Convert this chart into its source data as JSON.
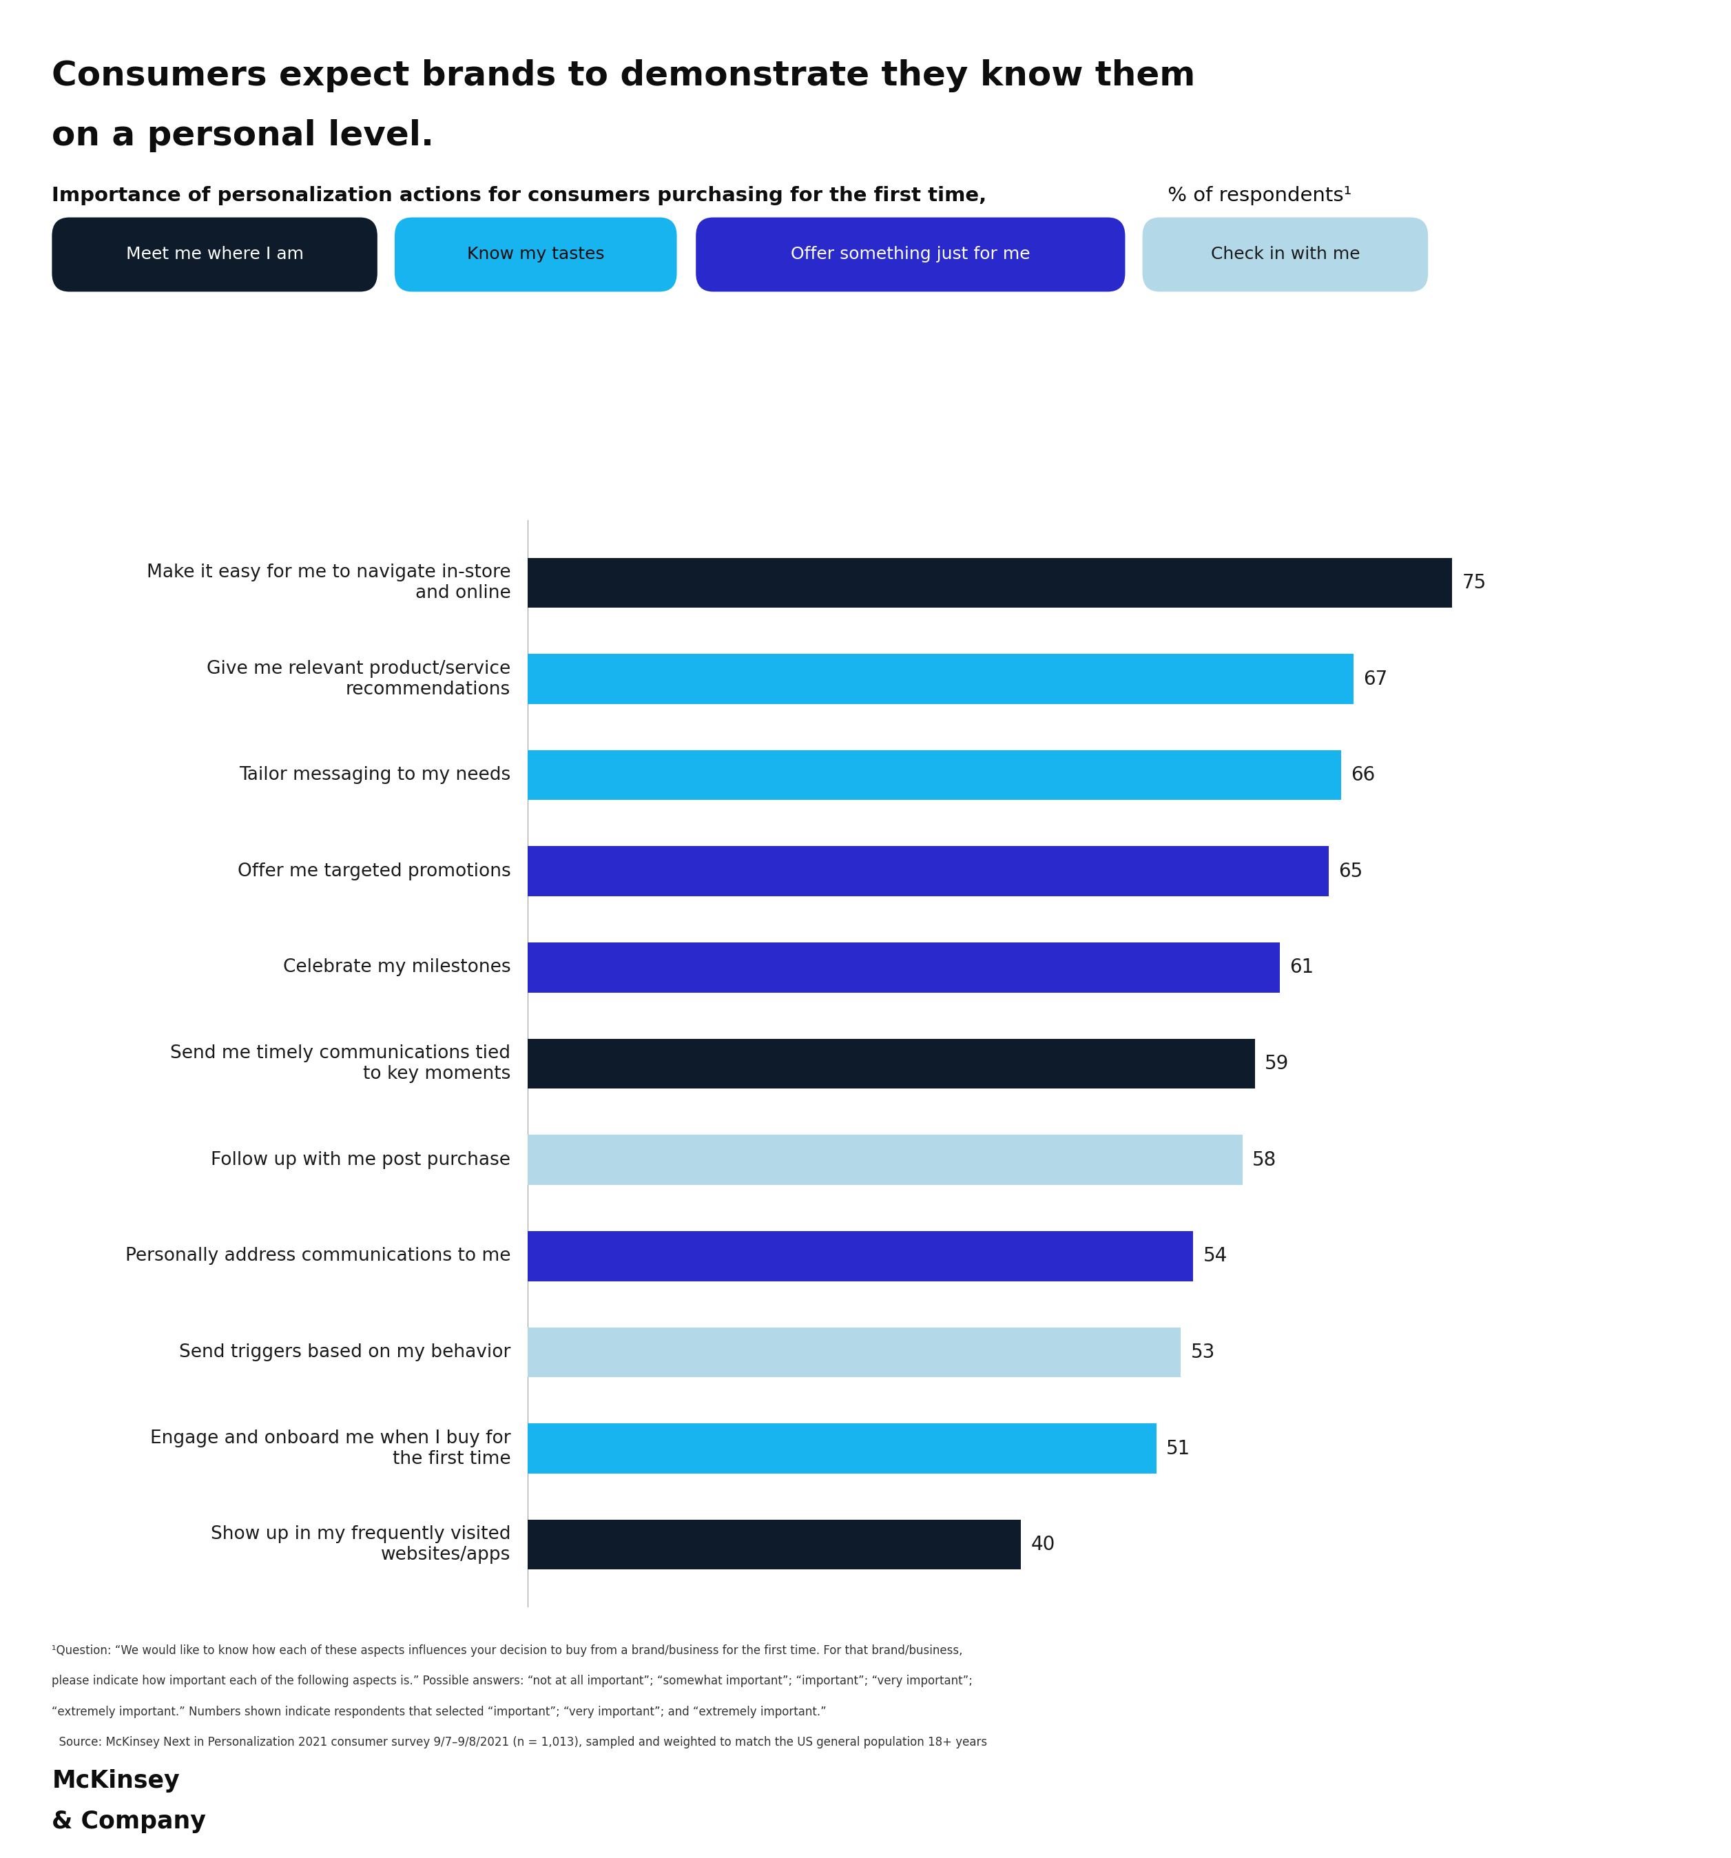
{
  "title_line1": "Consumers expect brands to demonstrate they know them",
  "title_line2": "on a personal level.",
  "subtitle_bold": "Importance of personalization actions for consumers purchasing for the first time,",
  "subtitle_normal": " % of respondents¹",
  "legend_items": [
    {
      "label": "Meet me where I am",
      "color": "#0d1b2a",
      "text_color": "#ffffff"
    },
    {
      "label": "Know my tastes",
      "color": "#18b4f0",
      "text_color": "#0d0d0d"
    },
    {
      "label": "Offer something just for me",
      "color": "#2929cc",
      "text_color": "#ffffff"
    },
    {
      "label": "Check in with me",
      "color": "#b3d9e8",
      "text_color": "#1a1a1a"
    }
  ],
  "bars": [
    {
      "label": "Make it easy for me to navigate in-store\nand online",
      "value": 75,
      "color": "#0d1b2a"
    },
    {
      "label": "Give me relevant product/service\nrecommendations",
      "value": 67,
      "color": "#18b4f0"
    },
    {
      "label": "Tailor messaging to my needs",
      "value": 66,
      "color": "#18b4f0"
    },
    {
      "label": "Offer me targeted promotions",
      "value": 65,
      "color": "#2929cc"
    },
    {
      "label": "Celebrate my milestones",
      "value": 61,
      "color": "#2929cc"
    },
    {
      "label": "Send me timely communications tied\nto key moments",
      "value": 59,
      "color": "#0d1b2a"
    },
    {
      "label": "Follow up with me post purchase",
      "value": 58,
      "color": "#b3d9e8"
    },
    {
      "label": "Personally address communications to me",
      "value": 54,
      "color": "#2929cc"
    },
    {
      "label": "Send triggers based on my behavior",
      "value": 53,
      "color": "#b3d9e8"
    },
    {
      "label": "Engage and onboard me when I buy for\nthe first time",
      "value": 51,
      "color": "#18b4f0"
    },
    {
      "label": "Show up in my frequently visited\nwebsites/apps",
      "value": 40,
      "color": "#0d1b2a"
    }
  ],
  "footnote_lines": [
    "¹Question: “We would like to know how each of these aspects influences your decision to buy from a brand/business for the first time. For that brand/business,",
    "please indicate how important each of the following aspects is.” Possible answers: “not at all important”; “somewhat important”; “important”; “very important”;",
    "“extremely important.” Numbers shown indicate respondents that selected “important”; “very important”; and “extremely important.”",
    "  Source: McKinsey Next in Personalization 2021 consumer survey 9/7–9/8/2021 (n = 1,013), sampled and weighted to match the US general population 18+ years"
  ],
  "mckinsey_line1": "McKinsey",
  "mckinsey_line2": "& Company",
  "xlim": [
    0,
    85
  ],
  "bar_height": 0.52
}
